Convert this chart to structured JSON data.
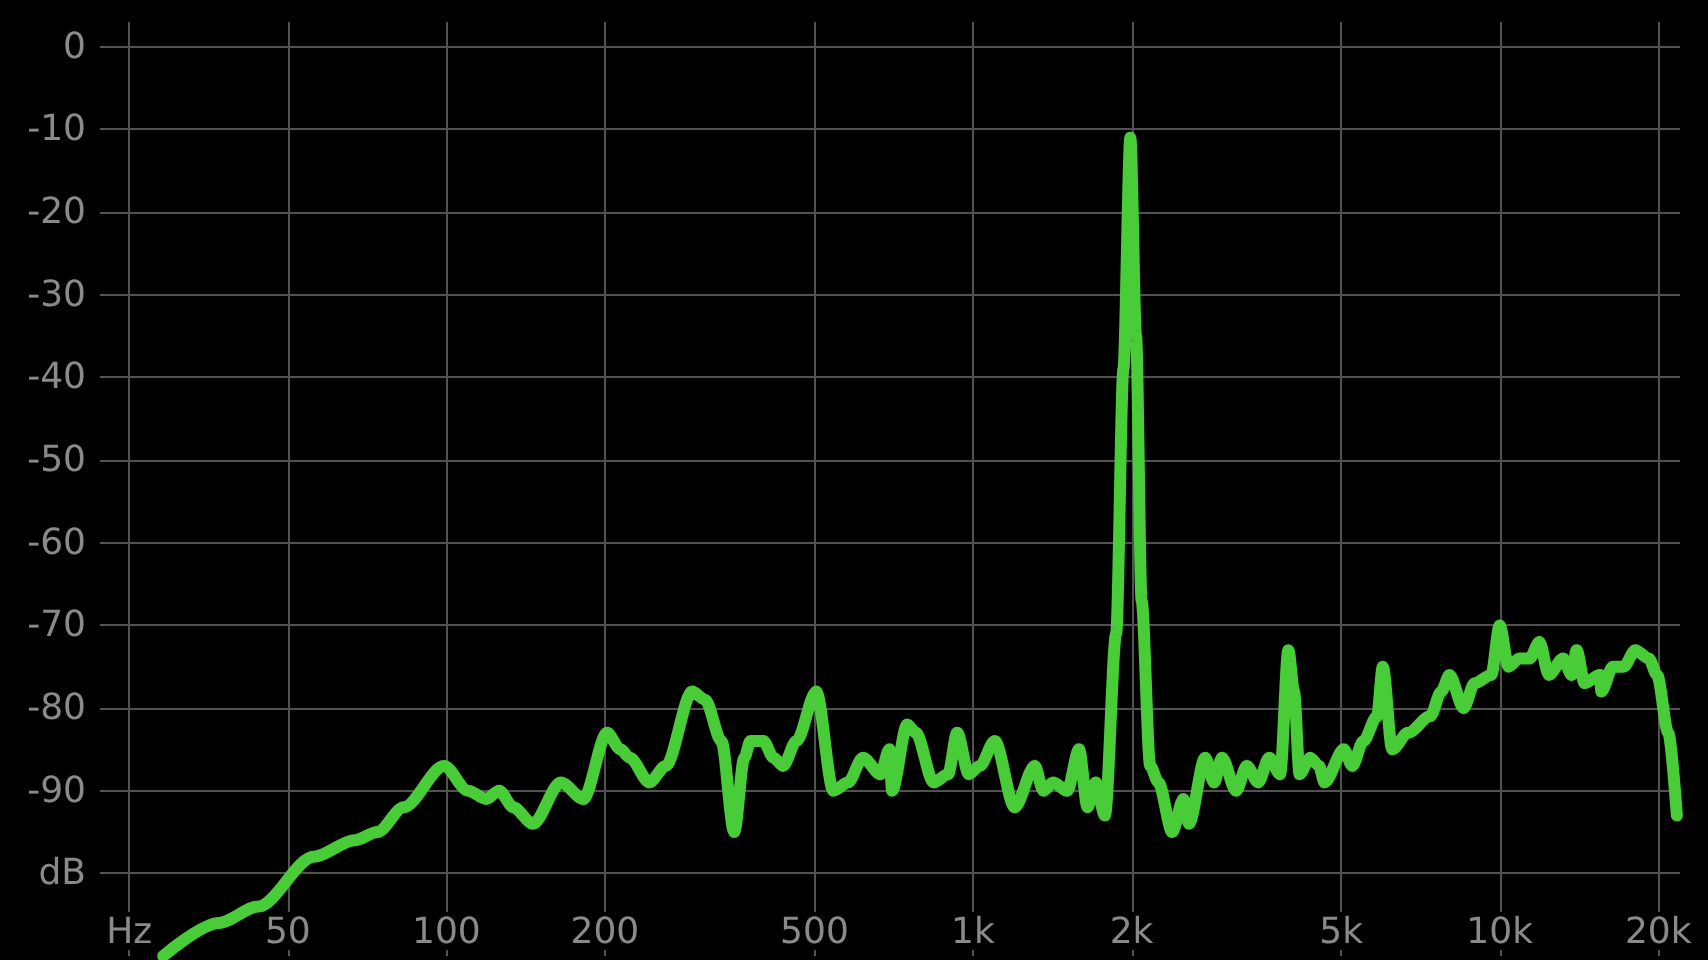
{
  "chart_data": {
    "type": "line",
    "x": [
      29,
      37,
      44,
      56,
      67,
      74,
      83,
      99,
      110,
      119,
      126,
      134,
      146,
      165,
      182,
      202,
      214,
      223,
      243,
      261,
      293,
      310,
      333,
      352,
      368,
      378,
      400,
      418,
      436,
      462,
      504,
      543,
      579,
      618,
      667,
      694,
      702,
      750,
      779,
      842,
      897,
      933,
      982,
      1030,
      1100,
      1200,
      1310,
      1360,
      1420,
      1510,
      1590,
      1650,
      1710,
      1780,
      1870,
      1930,
      1990,
      2040,
      2090,
      2170,
      2250,
      2390,
      2510,
      2570,
      2760,
      2870,
      2970,
      3160,
      3310,
      3480,
      3650,
      3830,
      3970,
      4070,
      4170,
      4370,
      4540,
      4650,
      5060,
      5250,
      5510,
      5850,
      6000,
      6250,
      6700,
      7380,
      7750,
      8030,
      8540,
      8960,
      9640,
      10000,
      10400,
      10900,
      11400,
      11900,
      12400,
      13200,
      13700,
      14000,
      14500,
      15500,
      15600,
      16400,
      17200,
      18100,
      19200,
      19900,
      20900,
      21700
    ],
    "values": [
      -110,
      -106,
      -104,
      -98,
      -96,
      -95,
      -92,
      -87,
      -90,
      -91,
      -90,
      -92,
      -94,
      -89,
      -91,
      -83,
      -85,
      -86,
      -89,
      -87,
      -78,
      -79,
      -84,
      -95,
      -86,
      -84,
      -84,
      -86,
      -87,
      -84,
      -78,
      -90,
      -89,
      -86,
      -88,
      -85,
      -90,
      -82,
      -83,
      -89,
      -88,
      -83,
      -88,
      -87,
      -84,
      -92,
      -87,
      -90,
      -89,
      -90,
      -85,
      -92,
      -89,
      -93,
      -71,
      -39,
      -11,
      -35,
      -67,
      -87,
      -89,
      -95,
      -91,
      -94,
      -86,
      -89,
      -86,
      -90,
      -87,
      -89,
      -86,
      -88,
      -73,
      -78,
      -88,
      -86,
      -87,
      -89,
      -85,
      -87,
      -84,
      -81,
      -75,
      -85,
      -83,
      -81,
      -78,
      -76,
      -80,
      -77,
      -76,
      -70,
      -75,
      -74,
      -74,
      -72,
      -76,
      -74,
      -76,
      -73,
      -77,
      -76,
      -78,
      -75,
      -75,
      -73,
      -74,
      -76,
      -83,
      -93
    ],
    "color": "#48cc38",
    "log": "x",
    "xlim": [
      22,
      22000
    ],
    "xticks": [
      {
        "value": 25,
        "label": "Hz"
      },
      50,
      100,
      200,
      500,
      {
        "value": 1000,
        "label": "1k"
      },
      {
        "value": 2000,
        "label": "2k"
      },
      {
        "value": 5000,
        "label": "5k"
      },
      {
        "value": 10000,
        "label": "10k"
      },
      {
        "value": 20000,
        "label": "20k"
      }
    ],
    "ylim": [
      -110,
      3
    ],
    "yticks": [
      0,
      -10,
      -20,
      -30,
      -40,
      -50,
      -60,
      -70,
      -80,
      -90,
      {
        "value": -100,
        "label": "dB"
      }
    ],
    "grid": true,
    "marker": "none",
    "line_style": "solid"
  }
}
